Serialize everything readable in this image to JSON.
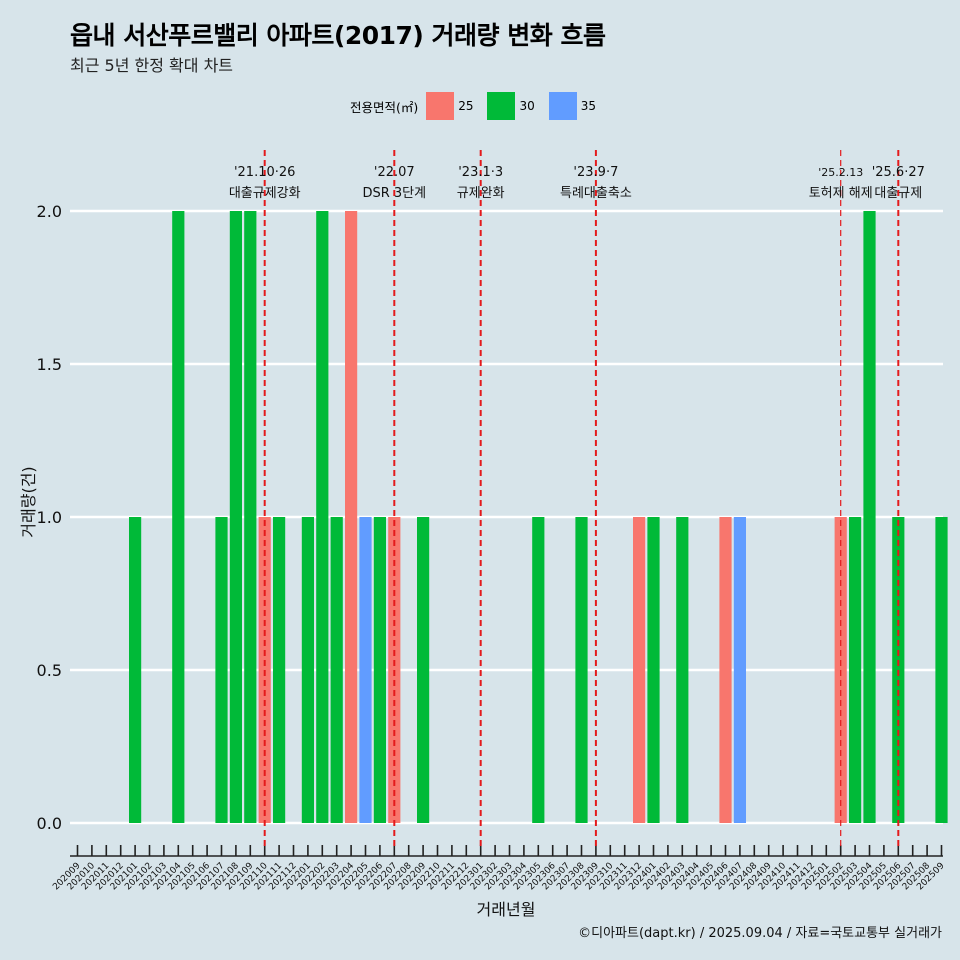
{
  "header": {
    "title": "읍내 서산푸르밸리 아파트(2017) 거래량 변화 흐름",
    "subtitle": "최근 5년 한정 확대 차트"
  },
  "legend": {
    "title": "전용면적(㎡)",
    "items": [
      {
        "label": "25",
        "color": "#F8766D"
      },
      {
        "label": "30",
        "color": "#00BA38"
      },
      {
        "label": "35",
        "color": "#619CFF"
      }
    ]
  },
  "caption": "©디아파트(dapt.kr) / 2025.09.04 / 자료=국토교통부 실거래가",
  "chart_data": {
    "type": "bar",
    "xlabel": "거래년월",
    "ylabel": "거래량(건)",
    "ylim": [
      0,
      2
    ],
    "yticks": [
      "0.0",
      "0.5",
      "1.0",
      "1.5",
      "2.0"
    ],
    "grid": true,
    "legend_position": "top",
    "categories": [
      "202009",
      "202010",
      "202011",
      "202012",
      "202101",
      "202102",
      "202103",
      "202104",
      "202105",
      "202106",
      "202107",
      "202108",
      "202109",
      "202110",
      "202111",
      "202112",
      "202201",
      "202202",
      "202203",
      "202204",
      "202205",
      "202206",
      "202207",
      "202208",
      "202209",
      "202210",
      "202211",
      "202212",
      "202301",
      "202302",
      "202303",
      "202304",
      "202305",
      "202306",
      "202307",
      "202308",
      "202309",
      "202310",
      "202311",
      "202312",
      "202401",
      "202402",
      "202403",
      "202404",
      "202405",
      "202406",
      "202407",
      "202408",
      "202409",
      "202410",
      "202411",
      "202412",
      "202501",
      "202502",
      "202503",
      "202504",
      "202505",
      "202506",
      "202507",
      "202508",
      "202509"
    ],
    "series": [
      {
        "name": "25",
        "color": "#F8766D",
        "points": [
          {
            "x": "202110",
            "y": 1
          },
          {
            "x": "202204",
            "y": 2
          },
          {
            "x": "202207",
            "y": 1
          },
          {
            "x": "202312",
            "y": 1
          },
          {
            "x": "202406",
            "y": 1
          },
          {
            "x": "202502",
            "y": 1
          }
        ]
      },
      {
        "name": "30",
        "color": "#00BA38",
        "points": [
          {
            "x": "202101",
            "y": 1
          },
          {
            "x": "202104",
            "y": 2
          },
          {
            "x": "202107",
            "y": 1
          },
          {
            "x": "202108",
            "y": 2
          },
          {
            "x": "202109",
            "y": 2
          },
          {
            "x": "202111",
            "y": 1
          },
          {
            "x": "202201",
            "y": 1
          },
          {
            "x": "202202",
            "y": 2
          },
          {
            "x": "202203",
            "y": 1
          },
          {
            "x": "202206",
            "y": 1
          },
          {
            "x": "202209",
            "y": 1
          },
          {
            "x": "202305",
            "y": 1
          },
          {
            "x": "202308",
            "y": 1
          },
          {
            "x": "202401",
            "y": 1
          },
          {
            "x": "202403",
            "y": 1
          },
          {
            "x": "202503",
            "y": 1
          },
          {
            "x": "202504",
            "y": 2
          },
          {
            "x": "202506",
            "y": 1
          },
          {
            "x": "202509",
            "y": 1
          }
        ]
      },
      {
        "name": "35",
        "color": "#619CFF",
        "points": [
          {
            "x": "202205",
            "y": 1
          },
          {
            "x": "202407",
            "y": 1
          }
        ]
      }
    ],
    "annotations": [
      {
        "x": "202110",
        "date": "'21.10·26",
        "text": "대출규제강화"
      },
      {
        "x": "202207",
        "date": "'22.07",
        "text": "DSR 3단계"
      },
      {
        "x": "202301",
        "date": "'23.1·3",
        "text": "규제완화"
      },
      {
        "x": "202309",
        "date": "'23.9·7",
        "text": "특례대출축소"
      },
      {
        "x": "202502",
        "date": "'25.2.13",
        "text": "토허제 해제"
      },
      {
        "x": "202506",
        "date": "'25.6·27",
        "text": "대출규제"
      }
    ],
    "annotation_line_color": "#e31a1c"
  }
}
